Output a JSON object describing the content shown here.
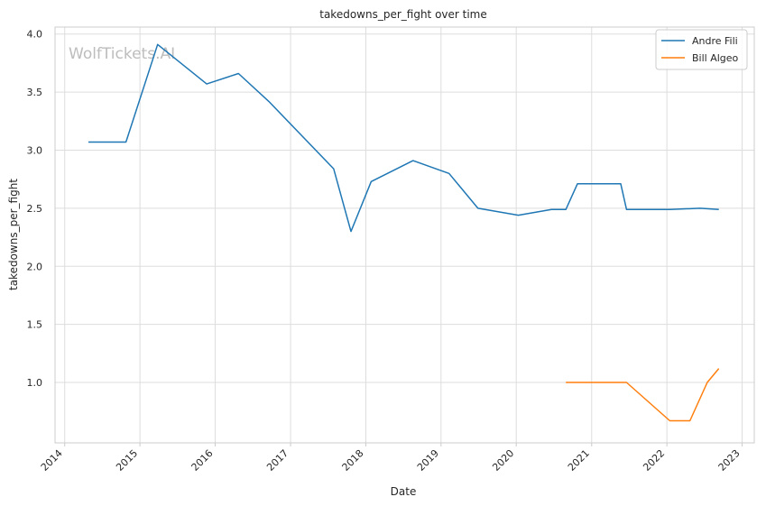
{
  "watermark": "WolfTickets.AI",
  "chart_data": {
    "type": "line",
    "title": "takedowns_per_fight over time",
    "xlabel": "Date",
    "ylabel": "takedowns_per_fight",
    "xlim": [
      "2013-11-15",
      "2023-03-01"
    ],
    "ylim": [
      0.48,
      4.06
    ],
    "x_ticks": [
      "2014",
      "2015",
      "2016",
      "2017",
      "2018",
      "2019",
      "2020",
      "2021",
      "2022",
      "2023"
    ],
    "y_ticks": [
      "1.0",
      "1.5",
      "2.0",
      "2.5",
      "3.0",
      "3.5",
      "4.0"
    ],
    "grid": true,
    "legend_position": "top-right",
    "series": [
      {
        "name": "Andre Fili",
        "color": "#1f77b4",
        "points": [
          [
            "2014-04-26",
            3.07
          ],
          [
            "2014-10-25",
            3.07
          ],
          [
            "2015-03-28",
            3.91
          ],
          [
            "2015-11-21",
            3.57
          ],
          [
            "2016-04-23",
            3.66
          ],
          [
            "2016-09-17",
            3.42
          ],
          [
            "2017-07-29",
            2.84
          ],
          [
            "2017-10-21",
            2.3
          ],
          [
            "2018-01-27",
            2.73
          ],
          [
            "2018-08-18",
            2.91
          ],
          [
            "2019-02-09",
            2.8
          ],
          [
            "2019-06-29",
            2.5
          ],
          [
            "2020-01-11",
            2.44
          ],
          [
            "2020-06-20",
            2.49
          ],
          [
            "2020-08-29",
            2.49
          ],
          [
            "2020-10-24",
            2.71
          ],
          [
            "2021-05-22",
            2.71
          ],
          [
            "2021-06-19",
            2.49
          ],
          [
            "2022-01-15",
            2.49
          ],
          [
            "2022-06-11",
            2.5
          ],
          [
            "2022-09-10",
            2.49
          ]
        ]
      },
      {
        "name": "Bill Algeo",
        "color": "#ff7f0e",
        "points": [
          [
            "2020-08-29",
            1.0
          ],
          [
            "2021-06-19",
            1.0
          ],
          [
            "2022-01-15",
            0.67
          ],
          [
            "2022-04-23",
            0.67
          ],
          [
            "2022-07-16",
            1.0
          ],
          [
            "2022-09-10",
            1.12
          ]
        ]
      }
    ]
  }
}
